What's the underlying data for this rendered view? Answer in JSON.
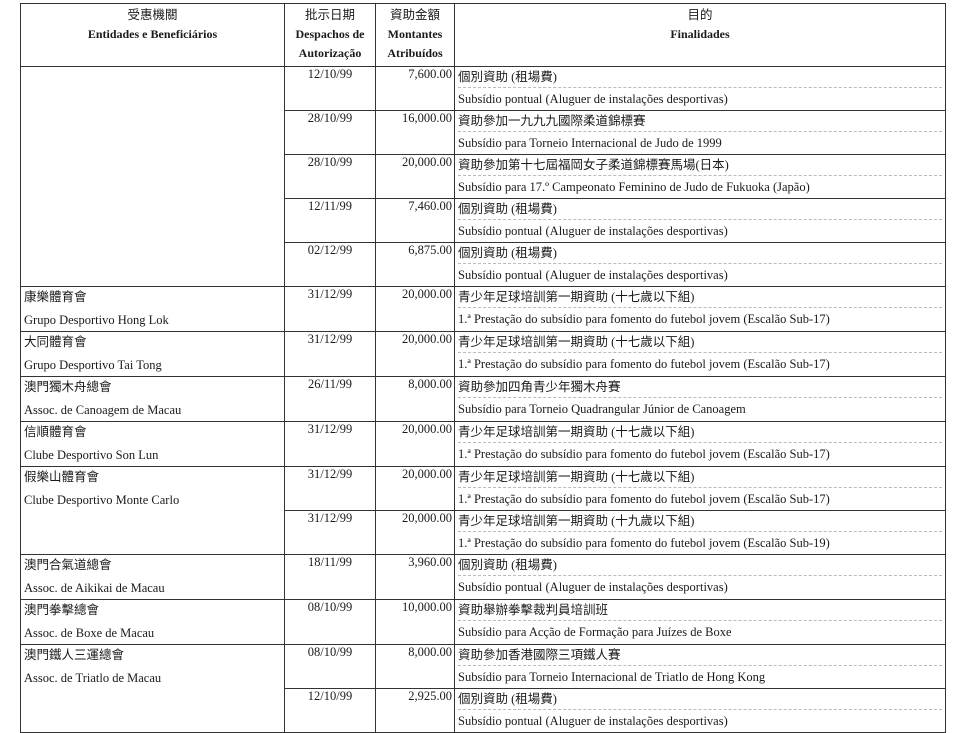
{
  "header": {
    "entity_zh": "受惠機關",
    "entity_pt": "Entidades e Beneficiários",
    "date_zh": "批示日期",
    "date_pt": "Despachos de Autorização",
    "amount_zh": "資助金額",
    "amount_pt": "Montantes Atribuídos",
    "purpose_zh": "目的",
    "purpose_pt": "Finalidades"
  },
  "groups": [
    {
      "entity_zh": "",
      "entity_pt": "",
      "rows": [
        {
          "date": "12/10/99",
          "amount": "7,600.00",
          "purpose_zh": "個別資助 (租場費)",
          "purpose_pt": "Subsídio pontual (Aluguer de instalações desportivas)"
        },
        {
          "date": "28/10/99",
          "amount": "16,000.00",
          "purpose_zh": "資助參加一九九九國際柔道錦標賽",
          "purpose_pt": "Subsídio para Torneio Internacional de Judo de 1999"
        },
        {
          "date": "28/10/99",
          "amount": "20,000.00",
          "purpose_zh": "資助參加第十七屆福岡女子柔道錦標賽馬場(日本)",
          "purpose_pt": "Subsídio para 17.º  Campeonato Feminino de Judo de Fukuoka (Japão)"
        },
        {
          "date": "12/11/99",
          "amount": "7,460.00",
          "purpose_zh": "個別資助 (租場費)",
          "purpose_pt": "Subsídio pontual (Aluguer de instalações desportivas)"
        },
        {
          "date": "02/12/99",
          "amount": "6,875.00",
          "purpose_zh": "個別資助 (租場費)",
          "purpose_pt": "Subsídio pontual (Aluguer de instalações desportivas)"
        }
      ]
    },
    {
      "entity_zh": "康樂體育會",
      "entity_pt": "Grupo Desportivo Hong Lok",
      "rows": [
        {
          "date": "31/12/99",
          "amount": "20,000.00",
          "purpose_zh": "青少年足球培訓第一期資助 (十七歲以下組)",
          "purpose_pt": "1.ª  Prestação do subsídio para fomento do futebol jovem (Escalão Sub-17)"
        }
      ]
    },
    {
      "entity_zh": "大同體育會",
      "entity_pt": "Grupo Desportivo Tai Tong",
      "rows": [
        {
          "date": "31/12/99",
          "amount": "20,000.00",
          "purpose_zh": "青少年足球培訓第一期資助 (十七歲以下組)",
          "purpose_pt": "1.ª  Prestação do subsídio para fomento do futebol jovem (Escalão Sub-17)"
        }
      ]
    },
    {
      "entity_zh": "澳門獨木舟總會",
      "entity_pt": "Assoc. de Canoagem de Macau",
      "rows": [
        {
          "date": "26/11/99",
          "amount": "8,000.00",
          "purpose_zh": "資助參加四角青少年獨木舟賽",
          "purpose_pt": "Subsídio para Torneio Quadrangular Júnior de Canoagem"
        }
      ]
    },
    {
      "entity_zh": "信順體育會",
      "entity_pt": "Clube Desportivo Son Lun",
      "rows": [
        {
          "date": "31/12/99",
          "amount": "20,000.00",
          "purpose_zh": "青少年足球培訓第一期資助 (十七歲以下組)",
          "purpose_pt": "1.ª  Prestação do subsídio para fomento do futebol jovem (Escalão Sub-17)"
        }
      ]
    },
    {
      "entity_zh": "假樂山體育會",
      "entity_pt": "Clube Desportivo Monte Carlo",
      "rows": [
        {
          "date": "31/12/99",
          "amount": "20,000.00",
          "purpose_zh": "青少年足球培訓第一期資助 (十七歲以下組)",
          "purpose_pt": "1.ª  Prestação do subsídio para fomento do futebol jovem (Escalão Sub-17)"
        },
        {
          "date": "31/12/99",
          "amount": "20,000.00",
          "purpose_zh": "青少年足球培訓第一期資助 (十九歲以下組)",
          "purpose_pt": "1.ª  Prestação do subsídio para fomento do futebol jovem (Escalão Sub-19)"
        }
      ]
    },
    {
      "entity_zh": "澳門合氣道總會",
      "entity_pt": "Assoc. de Aikikai de Macau",
      "rows": [
        {
          "date": "18/11/99",
          "amount": "3,960.00",
          "purpose_zh": "個別資助 (租場費)",
          "purpose_pt": "Subsídio pontual (Aluguer de instalações desportivas)"
        }
      ]
    },
    {
      "entity_zh": "澳門拳擊總會",
      "entity_pt": "Assoc. de Boxe de Macau",
      "rows": [
        {
          "date": "08/10/99",
          "amount": "10,000.00",
          "purpose_zh": "資助舉辦拳擊裁判員培訓班",
          "purpose_pt": "Subsídio para Acção de Formação para Juízes de Boxe"
        }
      ]
    },
    {
      "entity_zh": "澳門鐵人三運總會",
      "entity_pt": "Assoc. de Triatlo de Macau",
      "rows": [
        {
          "date": "08/10/99",
          "amount": "8,000.00",
          "purpose_zh": "資助參加香港國際三項鐵人賽",
          "purpose_pt": "Subsídio para Torneio Internacional de Triatlo de Hong Kong"
        },
        {
          "date": "12/10/99",
          "amount": "2,925.00",
          "purpose_zh": "個別資助 (租場費)",
          "purpose_pt": "Subsídio pontual (Aluguer de instalações desportivas)"
        }
      ]
    }
  ]
}
